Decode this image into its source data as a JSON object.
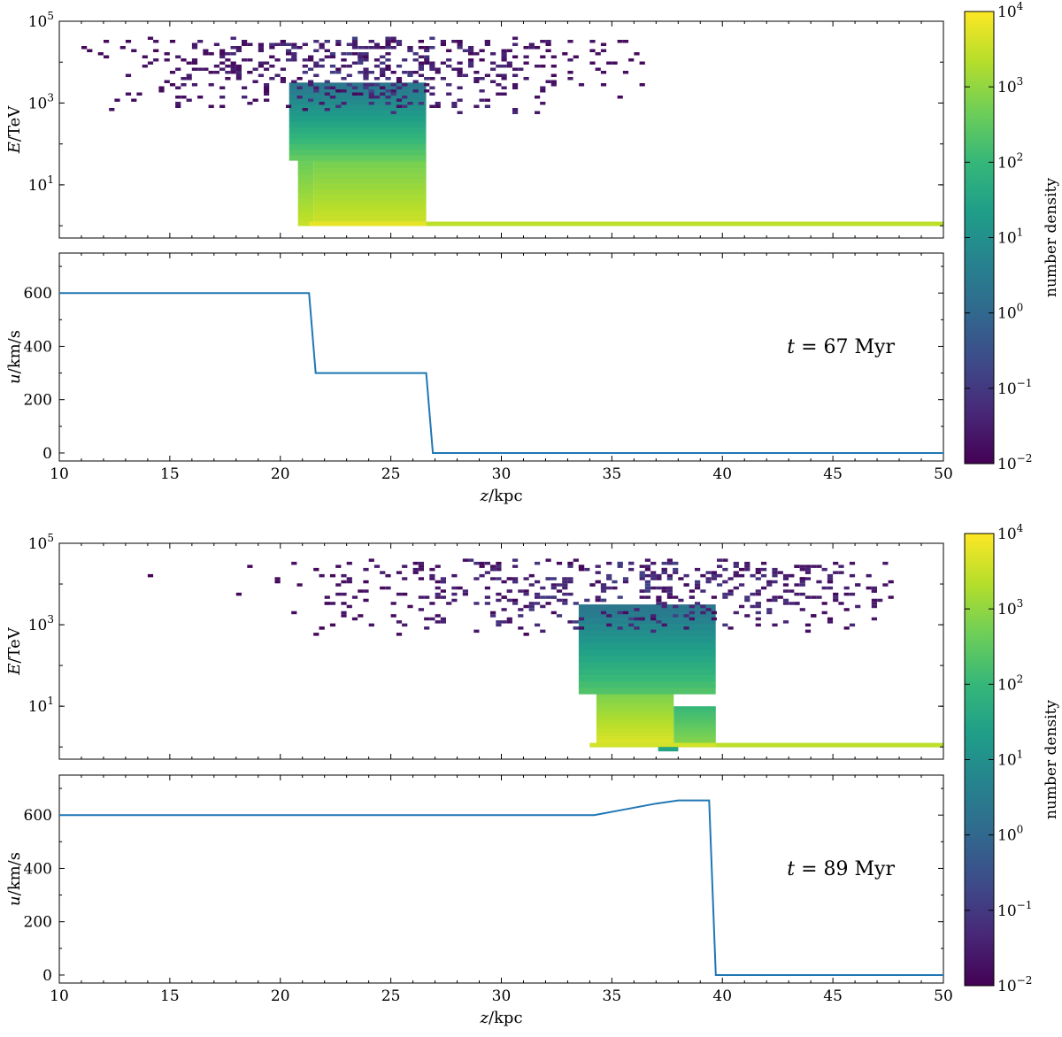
{
  "figure": {
    "colormap": [
      "#440154",
      "#482777",
      "#3e4a89",
      "#31688e",
      "#26828e",
      "#1f9e89",
      "#35b779",
      "#6ece58",
      "#b5de2b",
      "#fde725"
    ],
    "line_color": "#1f77b4"
  },
  "chart_data": [
    {
      "id": "top-heatmap",
      "type": "heatmap",
      "title": "",
      "xlabel": "",
      "ylabel": {
        "var": "E",
        "unit": "/TeV"
      },
      "xlim": [
        10,
        50
      ],
      "ylog_lim": [
        -0.3,
        5
      ],
      "y_ticks": [
        {
          "exp": "5"
        },
        {
          "exp": "3"
        },
        {
          "exp": "1"
        }
      ],
      "colorbar": {
        "label": "number density",
        "log_range": [
          -2,
          4
        ],
        "tick_exponents": [
          "4",
          "3",
          "2",
          "1",
          "0",
          "−1",
          "−2"
        ]
      },
      "regions": [
        {
          "z": [
            20.8,
            21.5
          ],
          "logE": [
            0.0,
            1.6
          ],
          "logC": [
            3.5,
            2.6
          ]
        },
        {
          "z": [
            21.5,
            26.6
          ],
          "logE": [
            0.0,
            1.8
          ],
          "logC": [
            3.6,
            2.6
          ]
        },
        {
          "z": [
            20.4,
            26.6
          ],
          "logE": [
            1.6,
            3.5
          ],
          "logC": [
            2.6,
            0.3
          ]
        },
        {
          "z": [
            21.3,
            26.6
          ],
          "logE": [
            0.0,
            0.1
          ],
          "logC": [
            3.8,
            3.8
          ]
        },
        {
          "z": [
            26.6,
            50.0
          ],
          "logE": [
            0.0,
            0.1
          ],
          "logC": [
            3.4,
            3.4
          ]
        }
      ],
      "scatter": {
        "z": [
          10.5,
          36.5
        ],
        "logE": [
          2.8,
          4.6
        ],
        "center_z": 24.0,
        "seed": 7,
        "count": 520
      }
    },
    {
      "id": "top-velocity",
      "type": "line",
      "title": "",
      "xlabel": {
        "var": "z",
        "unit": "/kpc"
      },
      "ylabel": {
        "var": "u",
        "unit": "/km/s"
      },
      "xlim": [
        10,
        50
      ],
      "ylim": [
        -30,
        750
      ],
      "x_ticks": [
        "10",
        "15",
        "20",
        "25",
        "30",
        "35",
        "40",
        "45",
        "50"
      ],
      "y_ticks": [
        "0",
        "200",
        "400",
        "600"
      ],
      "annotation": {
        "var": "t",
        "text": " = 67 Myr"
      },
      "series": [
        {
          "name": "u",
          "x": [
            10,
            21.3,
            21.6,
            26.6,
            26.9,
            50
          ],
          "y": [
            600,
            600,
            300,
            300,
            0,
            0
          ]
        }
      ]
    },
    {
      "id": "bottom-heatmap",
      "type": "heatmap",
      "title": "",
      "xlabel": "",
      "ylabel": {
        "var": "E",
        "unit": "/TeV"
      },
      "xlim": [
        10,
        50
      ],
      "ylog_lim": [
        -0.3,
        5
      ],
      "y_ticks": [
        {
          "exp": "5"
        },
        {
          "exp": "3"
        },
        {
          "exp": "1"
        }
      ],
      "colorbar": {
        "label": "number density",
        "log_range": [
          -2,
          4
        ],
        "tick_exponents": [
          "4",
          "3",
          "2",
          "1",
          "0",
          "−1",
          "−2"
        ]
      },
      "regions": [
        {
          "z": [
            34.3,
            37.8
          ],
          "logE": [
            0.1,
            1.3
          ],
          "logC": [
            3.7,
            2.8
          ]
        },
        {
          "z": [
            37.8,
            39.7
          ],
          "logE": [
            0.1,
            1.0
          ],
          "logC": [
            2.9,
            2.0
          ]
        },
        {
          "z": [
            33.5,
            39.7
          ],
          "logE": [
            1.3,
            3.5
          ],
          "logC": [
            2.4,
            0.3
          ]
        },
        {
          "z": [
            34.0,
            39.7
          ],
          "logE": [
            0.0,
            0.1
          ],
          "logC": [
            3.6,
            3.6
          ]
        },
        {
          "z": [
            39.7,
            50.0
          ],
          "logE": [
            0.0,
            0.1
          ],
          "logC": [
            3.4,
            3.4
          ]
        },
        {
          "z": [
            37.1,
            38.0
          ],
          "logE": [
            -0.1,
            0.0
          ],
          "logC": [
            1.5,
            1.5
          ]
        }
      ],
      "scatter": {
        "z": [
          10.2,
          47.5
        ],
        "logE": [
          2.8,
          4.6
        ],
        "center_z": 36.0,
        "seed": 11,
        "count": 560
      }
    },
    {
      "id": "bottom-velocity",
      "type": "line",
      "title": "",
      "xlabel": {
        "var": "z",
        "unit": "/kpc"
      },
      "ylabel": {
        "var": "u",
        "unit": "/km/s"
      },
      "xlim": [
        10,
        50
      ],
      "ylim": [
        -30,
        750
      ],
      "x_ticks": [
        "10",
        "15",
        "20",
        "25",
        "30",
        "35",
        "40",
        "45",
        "50"
      ],
      "y_ticks": [
        "0",
        "200",
        "400",
        "600"
      ],
      "annotation": {
        "var": "t",
        "text": " = 89 Myr"
      },
      "series": [
        {
          "name": "u",
          "x": [
            10,
            34.2,
            35.5,
            37.0,
            38.0,
            39.4,
            39.7,
            50
          ],
          "y": [
            600,
            600,
            620,
            643,
            655,
            655,
            0,
            0
          ]
        }
      ]
    }
  ]
}
